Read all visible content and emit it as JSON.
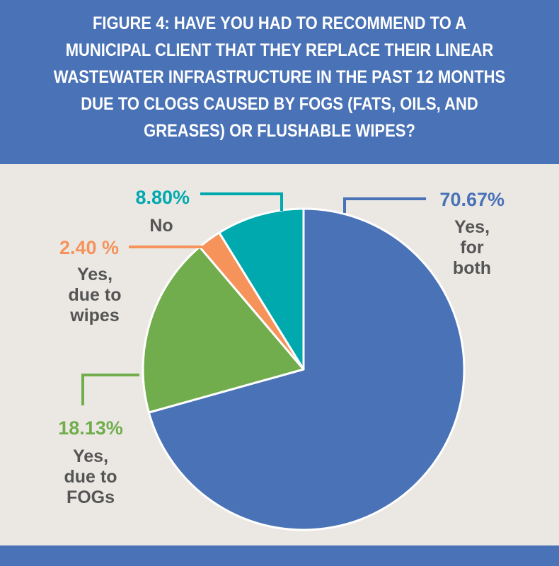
{
  "title": "FIGURE 4: HAVE YOU HAD TO RECOMMEND TO A MUNICIPAL CLIENT THAT THEY REPLACE THEIR LINEAR WASTEWATER INFRASTRUCTURE IN THE PAST 12 MONTHS DUE TO CLOGS CAUSED BY FOGS (FATS, OILS, AND GREASES) OR FLUSHABLE WIPES?",
  "chart_data": {
    "type": "pie",
    "title": "FIGURE 4: HAVE YOU HAD TO RECOMMEND TO A MUNICIPAL CLIENT THAT THEY REPLACE THEIR LINEAR WASTEWATER INFRASTRUCTURE IN THE PAST 12 MONTHS DUE TO CLOGS CAUSED BY FOGS (FATS, OILS, AND GREASES) OR FLUSHABLE WIPES?",
    "slices": [
      {
        "label": "Yes, for both",
        "value": 70.67,
        "value_label": "70.67%",
        "color": "#4a72b6",
        "label_lines": [
          "Yes,",
          "for",
          "both"
        ]
      },
      {
        "label": "Yes, due to FOGs",
        "value": 18.13,
        "value_label": "18.13%",
        "color": "#71ad4c",
        "label_lines": [
          "Yes,",
          "due to",
          "FOGs"
        ]
      },
      {
        "label": "Yes, due to wipes",
        "value": 2.4,
        "value_label": "2.40 %",
        "color": "#f5935b",
        "label_lines": [
          "Yes,",
          "due to",
          "wipes"
        ]
      },
      {
        "label": "No",
        "value": 8.8,
        "value_label": "8.80%",
        "color": "#00a9ae",
        "label_lines": [
          "No"
        ]
      }
    ],
    "start_angle_deg": 0,
    "direction": "clockwise"
  }
}
